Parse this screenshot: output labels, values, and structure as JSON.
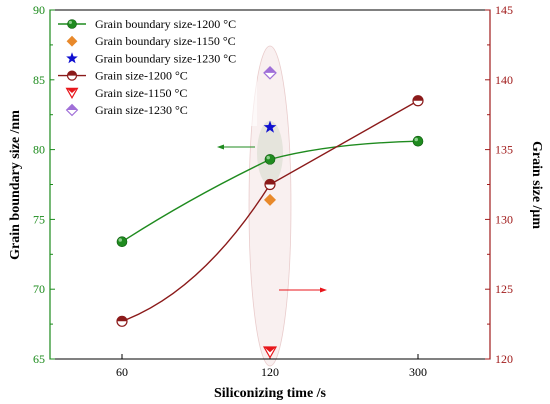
{
  "chart_data": {
    "type": "line",
    "xlabel": "Siliconizing time /s",
    "ylabel_left": "Grain boundary size /nm",
    "ylabel_right": "Grain size /μm",
    "categories": [
      "60",
      "120",
      "300"
    ],
    "ylim_left": [
      65,
      90
    ],
    "yticks_left": [
      "65",
      "70",
      "75",
      "80",
      "85",
      "90"
    ],
    "ylim_right": [
      120,
      145
    ],
    "yticks_right": [
      "120",
      "125",
      "130",
      "135",
      "140",
      "145"
    ],
    "grid": false,
    "legend_position": "top-left",
    "colors": {
      "left_axis": "#1a8a1a",
      "right_axis": "#a01a1a",
      "green": "#1f8b1f",
      "orange": "#e8892b",
      "blue": "#1010d0",
      "darkred": "#8b1a1a",
      "red": "#e8161b",
      "violet": "#a070d8"
    },
    "series": [
      {
        "name": "Grain boundary size-1200 °C",
        "axis": "left",
        "marker": "sphere",
        "color": "#1f8b1f",
        "x": [
          "60",
          "120",
          "300"
        ],
        "values": [
          73.4,
          79.3,
          80.6
        ],
        "line": true
      },
      {
        "name": "Grain boundary size-1150 °C",
        "axis": "left",
        "marker": "diamond",
        "color": "#e8892b",
        "x": [
          "120"
        ],
        "values": [
          76.4
        ],
        "line": false
      },
      {
        "name": "Grain boundary size-1230 °C",
        "axis": "left",
        "marker": "star",
        "color": "#1010d0",
        "x": [
          "120"
        ],
        "values": [
          81.6
        ],
        "line": false
      },
      {
        "name": "Grain size-1200 °C",
        "axis": "right",
        "marker": "half-circle",
        "color": "#8b1a1a",
        "x": [
          "60",
          "120",
          "300"
        ],
        "values": [
          122.7,
          132.5,
          138.5
        ],
        "line": true
      },
      {
        "name": "Grain size-1150 °C",
        "axis": "right",
        "marker": "half-triangle",
        "color": "#e8161b",
        "x": [
          "120"
        ],
        "values": [
          120.5
        ],
        "line": false
      },
      {
        "name": "Grain size-1230 °C",
        "axis": "right",
        "marker": "half-diamond",
        "color": "#a070d8",
        "x": [
          "120"
        ],
        "values": [
          140.5
        ],
        "line": false
      }
    ]
  }
}
